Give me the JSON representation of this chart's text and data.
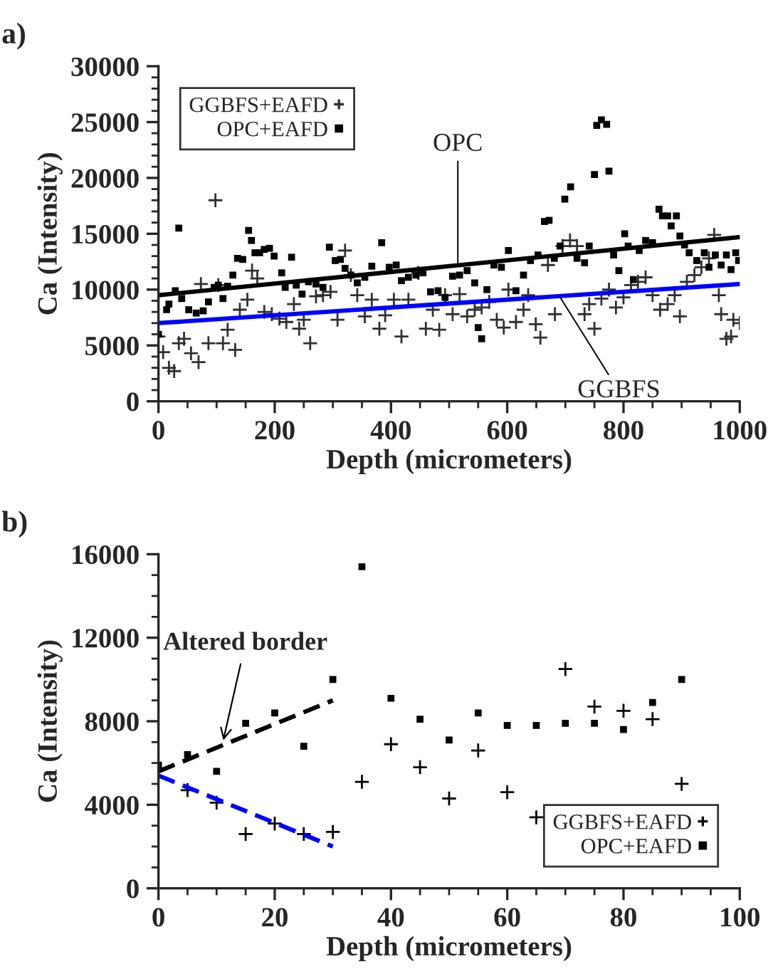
{
  "chart_data": [
    {
      "type": "scatter",
      "title": "a)",
      "xlabel": "Depth (micrometers)",
      "ylabel": "Ca (Intensity)",
      "xlim": [
        0,
        1000
      ],
      "xticks": [
        0,
        200,
        400,
        600,
        800,
        1000
      ],
      "ylim": [
        0,
        30000
      ],
      "yticks": [
        0,
        5000,
        10000,
        15000,
        20000,
        25000,
        30000
      ],
      "grid": false,
      "legend": "top left",
      "annotations": [
        {
          "text": "OPC",
          "x": 515,
          "y": 12200
        },
        {
          "text": "GGBFS",
          "x": 690,
          "y": 9400
        }
      ],
      "series": [
        {
          "name": "GGBFS+EAFD",
          "marker": "cross",
          "color": "#303030",
          "x": [
            0,
            8,
            18,
            27,
            35,
            44,
            56,
            69,
            73,
            86,
            98,
            103,
            111,
            119,
            132,
            140,
            153,
            161,
            170,
            182,
            195,
            208,
            220,
            233,
            242,
            250,
            261,
            271,
            283,
            296,
            308,
            321,
            331,
            342,
            355,
            367,
            380,
            390,
            405,
            418,
            430,
            447,
            460,
            472,
            483,
            493,
            506,
            518,
            531,
            544,
            556,
            569,
            582,
            594,
            602,
            615,
            628,
            636,
            649,
            657,
            670,
            682,
            695,
            708,
            720,
            733,
            741,
            750,
            762,
            775,
            787,
            800,
            813,
            825,
            838,
            850,
            863,
            876,
            888,
            897,
            909,
            922,
            934,
            947,
            956,
            964,
            968,
            977,
            985,
            989,
            1000
          ],
          "values": [
            5800,
            4400,
            3000,
            2700,
            5200,
            5600,
            4300,
            3500,
            10500,
            5200,
            18000,
            10400,
            5200,
            6400,
            4600,
            8200,
            9100,
            11700,
            11000,
            8000,
            7800,
            7400,
            7100,
            8700,
            6500,
            7300,
            5200,
            9400,
            9500,
            9800,
            7300,
            13500,
            11300,
            9500,
            7600,
            9100,
            6500,
            7700,
            9100,
            5800,
            9100,
            11500,
            6500,
            8200,
            6400,
            9500,
            7800,
            9600,
            7600,
            8200,
            8400,
            8900,
            7300,
            6600,
            10000,
            7100,
            8200,
            9500,
            6900,
            5700,
            12200,
            7800,
            13900,
            14400,
            13900,
            7800,
            8700,
            6500,
            9200,
            10000,
            8400,
            9300,
            10400,
            10700,
            11100,
            9500,
            8200,
            8700,
            9500,
            7600,
            10700,
            11300,
            12000,
            12800,
            14900,
            9500,
            7800,
            5600,
            5800,
            7300,
            7000
          ]
        },
        {
          "name": "OPC+EAFD",
          "marker": "square",
          "color": "#000000",
          "x": [
            0,
            14,
            18,
            29,
            35,
            40,
            52,
            65,
            77,
            86,
            96,
            103,
            111,
            119,
            128,
            136,
            145,
            155,
            160,
            166,
            174,
            182,
            191,
            199,
            212,
            218,
            229,
            237,
            247,
            258,
            271,
            283,
            294,
            304,
            313,
            321,
            331,
            342,
            355,
            367,
            384,
            397,
            409,
            418,
            430,
            443,
            455,
            468,
            481,
            493,
            506,
            518,
            531,
            544,
            550,
            556,
            565,
            577,
            590,
            602,
            615,
            628,
            640,
            653,
            664,
            672,
            681,
            691,
            699,
            709,
            720,
            733,
            741,
            750,
            754,
            762,
            771,
            775,
            783,
            792,
            802,
            808,
            817,
            827,
            838,
            850,
            861,
            867,
            876,
            882,
            891,
            897,
            905,
            913,
            926,
            939,
            947,
            958,
            968,
            977,
            985,
            993,
            998
          ],
          "values": [
            6000,
            8200,
            8700,
            9900,
            15500,
            9200,
            8200,
            7900,
            8100,
            8900,
            10200,
            10400,
            9200,
            10300,
            11300,
            12800,
            12700,
            15300,
            14400,
            13300,
            13300,
            13600,
            13700,
            13000,
            11500,
            10200,
            12900,
            10400,
            9600,
            10700,
            10500,
            10200,
            13800,
            12600,
            12700,
            11900,
            11300,
            10600,
            11100,
            12100,
            14200,
            12000,
            12200,
            10800,
            11100,
            11300,
            11500,
            9800,
            9900,
            9300,
            11200,
            11300,
            11700,
            10600,
            6600,
            5600,
            10000,
            12200,
            12000,
            13500,
            9900,
            11300,
            12600,
            13100,
            16100,
            16200,
            12800,
            13900,
            18100,
            19200,
            12800,
            12400,
            13900,
            20300,
            24700,
            25200,
            24800,
            20600,
            13100,
            11700,
            15000,
            13900,
            10900,
            13500,
            14400,
            14200,
            17200,
            16600,
            16600,
            15700,
            16600,
            14800,
            14000,
            13300,
            12600,
            13300,
            12000,
            13100,
            12200,
            13100,
            11800,
            13300,
            12600
          ]
        },
        {
          "type": "line",
          "color": "#000000",
          "line_style": "solid",
          "marker": "none",
          "x": [
            0,
            1000
          ],
          "values": [
            9500,
            14700
          ]
        },
        {
          "type": "line",
          "color": "#0000ff",
          "line_style": "solid",
          "marker": "none",
          "x": [
            0,
            1000
          ],
          "values": [
            7000,
            10500
          ]
        }
      ]
    },
    {
      "type": "scatter",
      "title": "b)",
      "xlabel": "Depth (micrometers)",
      "ylabel": "Ca (Intensity)",
      "xlim": [
        0,
        100
      ],
      "xticks": [
        0,
        20,
        40,
        60,
        80,
        100
      ],
      "ylim": [
        0,
        16000
      ],
      "yticks": [
        0,
        4000,
        8000,
        12000,
        16000
      ],
      "grid": false,
      "legend": "bottom right",
      "annotations": [
        {
          "text": "Altered border",
          "x": 11,
          "y": 6900
        }
      ],
      "series": [
        {
          "name": "GGBFS+EAFD",
          "marker": "cross",
          "color": "#000000",
          "x": [
            5,
            10,
            15,
            20,
            25,
            30,
            35,
            40,
            45,
            50,
            55,
            60,
            65,
            70,
            75,
            80,
            85,
            90
          ],
          "values": [
            4700,
            4100,
            2600,
            3100,
            2600,
            2700,
            5100,
            6900,
            5800,
            4300,
            6600,
            4600,
            3400,
            10500,
            8700,
            8500,
            8100,
            5000
          ]
        },
        {
          "name": "OPC+EAFD",
          "marker": "square",
          "color": "#000000",
          "x": [
            0,
            5,
            10,
            15,
            20,
            25,
            30,
            35,
            40,
            45,
            50,
            55,
            60,
            65,
            70,
            75,
            80,
            85,
            90
          ],
          "values": [
            5900,
            6400,
            5600,
            7900,
            8400,
            6800,
            10000,
            15400,
            9100,
            8100,
            7100,
            8400,
            7800,
            7800,
            7900,
            7900,
            7600,
            8900,
            10000
          ]
        },
        {
          "type": "line",
          "color": "#000000",
          "line_style": "dashed",
          "marker": "none",
          "x": [
            0,
            30
          ],
          "values": [
            5600,
            9000
          ]
        },
        {
          "type": "line",
          "color": "#0000ff",
          "line_style": "dashed",
          "marker": "none",
          "x": [
            0,
            30
          ],
          "values": [
            5400,
            2000
          ]
        }
      ]
    }
  ]
}
